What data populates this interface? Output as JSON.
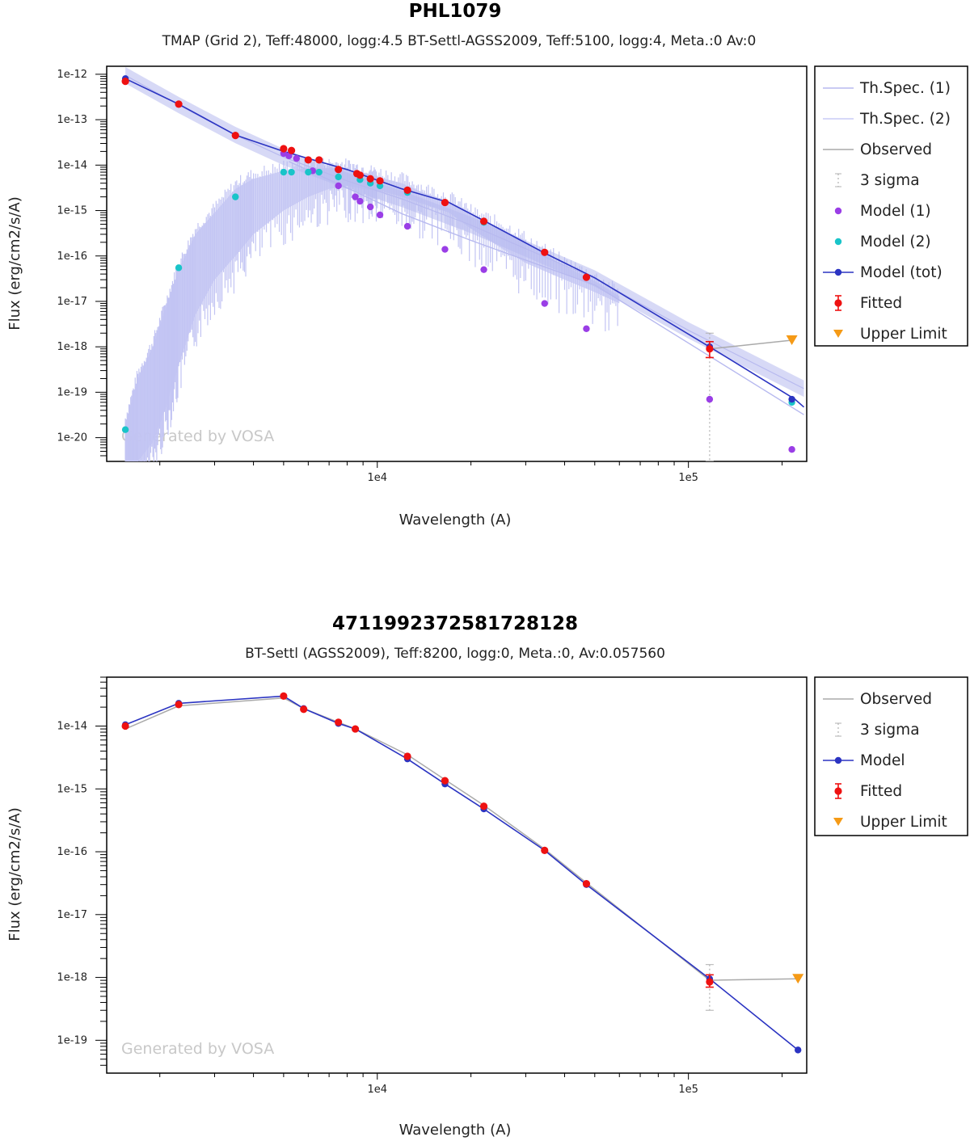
{
  "chart_data": [
    {
      "type": "scatter",
      "title": "PHL1079",
      "subtitle": "TMAP (Grid 2), Teff:48000, logg:4.5 BT-Settl-AGSS2009, Teff:5100, logg:4, Meta.:0 Av:0",
      "xlabel": "Wavelength (A)",
      "ylabel": "Flux (erg/cm2/s/A)",
      "xscale": "log",
      "yscale": "log",
      "xlim": [
        1350,
        240000
      ],
      "ylim": [
        3e-21,
        1.5e-12
      ],
      "x_tick_labels": [
        {
          "value": 10000,
          "label": "1e4"
        },
        {
          "value": 100000,
          "label": "1e5"
        }
      ],
      "y_tick_labels": [
        {
          "value": 1e-12,
          "label": "1e-12"
        },
        {
          "value": 1e-13,
          "label": "1e-13"
        },
        {
          "value": 1e-14,
          "label": "1e-14"
        },
        {
          "value": 1e-15,
          "label": "1e-15"
        },
        {
          "value": 1e-16,
          "label": "1e-16"
        },
        {
          "value": 1e-17,
          "label": "1e-17"
        },
        {
          "value": 1e-18,
          "label": "1e-18"
        },
        {
          "value": 1e-19,
          "label": "1e-19"
        },
        {
          "value": 1e-20,
          "label": "1e-20"
        }
      ],
      "watermark": "Generated by VOSA",
      "legend_position": "right",
      "legend": [
        {
          "label": "Th.Spec. (1)",
          "kind": "line",
          "color": "#b7b9ef"
        },
        {
          "label": "Th.Spec. (2)",
          "kind": "line",
          "color": "#c9cbf5"
        },
        {
          "label": "Observed",
          "kind": "line",
          "color": "#aaaaaa"
        },
        {
          "label": "3 sigma",
          "kind": "sigma",
          "color": "#aaaaaa"
        },
        {
          "label": "Model (1)",
          "kind": "dot",
          "color": "#9a3ee6"
        },
        {
          "label": "Model (2)",
          "kind": "dot",
          "color": "#19c4c9"
        },
        {
          "label": "Model (tot)",
          "kind": "linedot",
          "color": "#2b34c2"
        },
        {
          "label": "Fitted",
          "kind": "errdot",
          "color": "#ee1111"
        },
        {
          "label": "Upper Limit",
          "kind": "tri",
          "color": "#f59a16"
        }
      ],
      "spectrum1": {
        "color": "#b7b9ef",
        "x": [
          1550,
          2300,
          3500,
          5000,
          8000,
          12000,
          20000,
          50000,
          100000,
          235000
        ],
        "y": [
          9.5e-13,
          2.1e-13,
          4.6e-14,
          1.5e-14,
          4.5e-15,
          1.8e-15,
          4.8e-16,
          3.2e-17,
          2.3e-18,
          1.2e-19
        ],
        "band_width": 0.18
      },
      "spectrum2": {
        "color": "#c2c4f3",
        "x": [
          1550,
          1700,
          1900,
          2100,
          2300,
          2600,
          3000,
          3500,
          4000,
          5000,
          6000,
          7000,
          8000,
          9000,
          10000,
          12000,
          14000,
          17000,
          20000,
          25000,
          30000,
          40000,
          50000,
          60000
        ],
        "hi": [
          2e-20,
          2e-19,
          1e-18,
          8e-18,
          5e-17,
          3e-16,
          9e-16,
          3e-15,
          5e-15,
          7.5e-15,
          8.5e-15,
          8.5e-15,
          8e-15,
          6.5e-15,
          5.5e-15,
          4e-15,
          2.5e-15,
          1.6e-15,
          8e-16,
          4e-16,
          2e-16,
          6e-17,
          2.8e-17,
          1.3e-17
        ],
        "lo": [
          3e-21,
          3e-21,
          8e-21,
          5e-20,
          4e-19,
          5e-18,
          3e-17,
          1e-16,
          3e-16,
          1e-15,
          2e-15,
          3e-15,
          3.5e-15,
          3e-15,
          2.8e-15,
          2e-15,
          1.4e-15,
          9e-16,
          4e-16,
          1.5e-16,
          7e-17,
          3e-17,
          1.6e-17,
          9e-18
        ]
      },
      "model1_line": {
        "color": "#b7b9ef",
        "x": [
          5200,
          8500,
          12000,
          20000,
          50000,
          235000
        ],
        "y": [
          1.2e-14,
          2.6e-15,
          8.5e-16,
          2.2e-16,
          2.3e-17,
          3.2e-20
        ]
      },
      "model_tot_line": {
        "color": "#2b34c2",
        "x": [
          1550,
          2300,
          3500,
          5000,
          8000,
          12000,
          17000,
          22000,
          35000,
          50000,
          120000,
          220000,
          235000
        ],
        "y": [
          8e-13,
          2.2e-13,
          4.6e-14,
          2e-14,
          8e-15,
          3e-15,
          1.5e-15,
          6e-16,
          1.1e-16,
          3.3e-17,
          9e-19,
          7e-20,
          4.7e-20
        ]
      },
      "observed_line": {
        "color": "#aaaaaa",
        "x": [
          117000,
          215000
        ],
        "y": [
          9e-19,
          1.4e-18
        ]
      },
      "sigma_bars": [
        {
          "x": 117000,
          "low": 3e-21,
          "high": 2e-18
        }
      ],
      "model1_points": {
        "color": "#9a3ee6",
        "x": [
          5000,
          5200,
          5500,
          6200,
          7500,
          8500,
          8800,
          9500,
          10200,
          12500,
          16500,
          22000,
          34500,
          47000,
          117000,
          215000
        ],
        "y": [
          1.8e-14,
          1.6e-14,
          1.4e-14,
          7.5e-15,
          3.5e-15,
          2e-15,
          1.6e-15,
          1.2e-15,
          8e-16,
          4.5e-16,
          1.4e-16,
          5e-17,
          9e-18,
          2.5e-18,
          7e-20,
          5.5e-21
        ]
      },
      "model2_points": {
        "color": "#19c4c9",
        "x": [
          1550,
          2300,
          3500,
          5000,
          5300,
          6000,
          6500,
          7500,
          8800,
          9500,
          10200,
          12500,
          16500,
          22000,
          215000
        ],
        "y": [
          1.5e-20,
          5.5e-17,
          2e-15,
          7e-15,
          7e-15,
          7e-15,
          7e-15,
          5.5e-15,
          4.8e-15,
          4e-15,
          3.5e-15,
          2.5e-15,
          1.5e-15,
          5.5e-16,
          6e-20
        ]
      },
      "model_tot_points": {
        "color": "#2b34c2",
        "x": [
          1550,
          117000,
          215000
        ],
        "y": [
          8e-13,
          1e-18,
          7e-20
        ]
      },
      "fitted_points": {
        "color": "#ee1111",
        "x": [
          1550,
          2300,
          3500,
          5000,
          5300,
          6000,
          6500,
          7500,
          8600,
          8800,
          9500,
          10200,
          12500,
          16500,
          22000,
          34500,
          47000,
          117000
        ],
        "y": [
          7e-13,
          2.2e-13,
          4.5e-14,
          2.3e-14,
          2.1e-14,
          1.3e-14,
          1.3e-14,
          8e-15,
          6.5e-15,
          6e-15,
          5e-15,
          4.5e-15,
          2.8e-15,
          1.5e-15,
          5.8e-16,
          1.2e-16,
          3.4e-17,
          9e-19
        ],
        "err_low": [
          null,
          null,
          null,
          null,
          null,
          null,
          null,
          null,
          null,
          null,
          null,
          null,
          null,
          null,
          null,
          null,
          null,
          5.8e-19
        ],
        "err_high": [
          null,
          null,
          null,
          null,
          null,
          null,
          null,
          null,
          null,
          null,
          null,
          null,
          null,
          null,
          null,
          null,
          null,
          1.3e-18
        ]
      },
      "upper_limits": {
        "color": "#f59a16",
        "x": [
          215000
        ],
        "y": [
          1.4e-18
        ]
      }
    },
    {
      "type": "scatter",
      "title": "4711992372581728128",
      "subtitle": "BT-Settl (AGSS2009), Teff:8200, logg:0, Meta.:0, Av:0.057560",
      "xlabel": "Wavelength (A)",
      "ylabel": "Flux (erg/cm2/s/A)",
      "xscale": "log",
      "yscale": "log",
      "xlim": [
        1350,
        240000
      ],
      "ylim": [
        3e-20,
        6e-14
      ],
      "x_tick_labels": [
        {
          "value": 10000,
          "label": "1e4"
        },
        {
          "value": 100000,
          "label": "1e5"
        }
      ],
      "y_tick_labels": [
        {
          "value": 1e-14,
          "label": "1e-14"
        },
        {
          "value": 1e-15,
          "label": "1e-15"
        },
        {
          "value": 1e-16,
          "label": "1e-16"
        },
        {
          "value": 1e-17,
          "label": "1e-17"
        },
        {
          "value": 1e-18,
          "label": "1e-18"
        },
        {
          "value": 1e-19,
          "label": "1e-19"
        }
      ],
      "watermark": "Generated by VOSA",
      "legend_position": "right",
      "legend": [
        {
          "label": "Observed",
          "kind": "line",
          "color": "#aaaaaa"
        },
        {
          "label": "3 sigma",
          "kind": "sigma",
          "color": "#aaaaaa"
        },
        {
          "label": "Model",
          "kind": "linedot",
          "color": "#2b34c2"
        },
        {
          "label": "Fitted",
          "kind": "errdot",
          "color": "#ee1111"
        },
        {
          "label": "Upper Limit",
          "kind": "tri",
          "color": "#f59a16"
        }
      ],
      "observed_line": {
        "color": "#aaaaaa",
        "x": [
          1550,
          2300,
          5000,
          5800,
          7500,
          8500,
          12500,
          16500,
          22000,
          34500,
          47000,
          117000,
          225000
        ],
        "y": [
          9e-15,
          2.1e-14,
          2.8e-14,
          1.9e-14,
          1.15e-14,
          9e-15,
          3.5e-15,
          1.4e-15,
          5.5e-16,
          1.1e-16,
          3.2e-17,
          9e-19,
          9.5e-19
        ]
      },
      "sigma_bars": [
        {
          "x": 117000,
          "low": 3e-19,
          "high": 1.6e-18
        }
      ],
      "model_line": {
        "color": "#2b34c2",
        "x": [
          1550,
          2300,
          5000,
          5800,
          7500,
          8500,
          12500,
          16500,
          22000,
          34500,
          47000,
          117000,
          225000
        ],
        "y": [
          1.05e-14,
          2.3e-14,
          3e-14,
          1.9e-14,
          1.1e-14,
          9e-15,
          3e-15,
          1.2e-15,
          4.8e-16,
          1.05e-16,
          3e-17,
          9.5e-19,
          7e-20
        ]
      },
      "model_points": {
        "color": "#2b34c2",
        "x": [
          1550,
          2300,
          5000,
          5800,
          7500,
          8500,
          12500,
          16500,
          22000,
          34500,
          47000,
          117000,
          225000
        ],
        "y": [
          1.05e-14,
          2.3e-14,
          3e-14,
          1.9e-14,
          1.1e-14,
          9e-15,
          3e-15,
          1.2e-15,
          4.8e-16,
          1.05e-16,
          3e-17,
          9.5e-19,
          7e-20
        ]
      },
      "fitted_points": {
        "color": "#ee1111",
        "x": [
          1550,
          2300,
          5000,
          5800,
          7500,
          8500,
          12500,
          16500,
          22000,
          34500,
          47000,
          117000
        ],
        "y": [
          1e-14,
          2.2e-14,
          3e-14,
          1.85e-14,
          1.15e-14,
          9e-15,
          3.3e-15,
          1.35e-15,
          5.3e-16,
          1.05e-16,
          3.1e-17,
          8.5e-19
        ],
        "err_low": [
          null,
          null,
          null,
          null,
          null,
          null,
          null,
          null,
          null,
          null,
          null,
          7e-19
        ],
        "err_high": [
          null,
          null,
          null,
          null,
          null,
          null,
          null,
          null,
          null,
          null,
          null,
          1.1e-18
        ]
      },
      "upper_limits": {
        "color": "#f59a16",
        "x": [
          225000
        ],
        "y": [
          9.5e-19
        ]
      }
    }
  ]
}
